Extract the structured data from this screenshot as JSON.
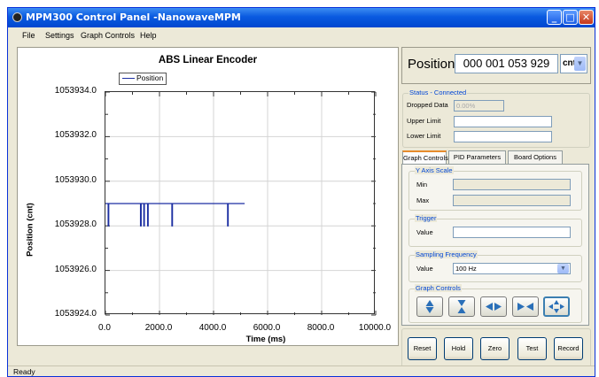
{
  "window": {
    "title": "MPM300 Control Panel -NanowaveMPM"
  },
  "menu": {
    "items": [
      "File",
      "Settings",
      "Graph Controls",
      "Help"
    ]
  },
  "chart": {
    "title": "ABS Linear Encoder",
    "legend_label": "Position",
    "xlabel": "Time (ms)",
    "ylabel": "Position (cnt)",
    "ytick_labels": [
      "1053934.0",
      "1053932.0",
      "1053930.0",
      "1053928.0",
      "1053926.0",
      "1053924.0"
    ],
    "xtick_labels": [
      "0.0",
      "2000.0",
      "4000.0",
      "6000.0",
      "8000.0",
      "10000.0"
    ],
    "line_color": "#1c2fa2"
  },
  "chart_data": {
    "type": "line",
    "title": "ABS Linear Encoder",
    "xlabel": "Time (ms)",
    "ylabel": "Position (cnt)",
    "xlim": [
      0,
      10000
    ],
    "ylim": [
      1053924,
      1053934
    ],
    "grid": true,
    "legend_position": "top-left",
    "series": [
      {
        "name": "Position",
        "color": "#1c2fa2",
        "x": [
          0,
          100,
          100,
          120,
          120,
          1300,
          1300,
          1320,
          1320,
          1420,
          1420,
          1440,
          1440,
          1560,
          1560,
          1580,
          1580,
          2460,
          2460,
          2480,
          2480,
          4520,
          4520,
          4540,
          4540,
          5150
        ],
        "y": [
          1053929,
          1053929,
          1053928,
          1053928,
          1053929,
          1053929,
          1053928,
          1053928,
          1053929,
          1053929,
          1053928,
          1053928,
          1053929,
          1053929,
          1053928,
          1053928,
          1053929,
          1053929,
          1053928,
          1053928,
          1053929,
          1053929,
          1053928,
          1053928,
          1053929,
          1053929
        ]
      }
    ]
  },
  "position": {
    "label": "Position",
    "value": "000 001 053 929",
    "unit": "cnt"
  },
  "status": {
    "legend": "Status - Connected",
    "dropped_label": "Dropped Data",
    "dropped_value": "0.00%",
    "upper_label": "Upper Limit",
    "upper_value": "",
    "lower_label": "Lower Limit",
    "lower_value": ""
  },
  "tabs": [
    "Graph Controls",
    "PID Parameters",
    "Board Options"
  ],
  "y_axis_scale": {
    "legend": "Y Axis Scale",
    "min_label": "Min",
    "max_label": "Max",
    "min_value": "",
    "max_value": ""
  },
  "trigger": {
    "legend": "Trigger",
    "value_label": "Value",
    "value": ""
  },
  "sampling": {
    "legend": "Sampling Frequency",
    "value_label": "Value",
    "value": "100 Hz"
  },
  "graph_controls": {
    "legend": "Graph Controls",
    "buttons": [
      "expand-vertical-icon",
      "compress-vertical-icon",
      "expand-horizontal-icon",
      "compress-horizontal-icon",
      "expand-all-icon"
    ]
  },
  "actions": [
    "Reset",
    "Hold",
    "Zero",
    "Test",
    "Record"
  ],
  "statusbar": {
    "text": "Ready"
  }
}
